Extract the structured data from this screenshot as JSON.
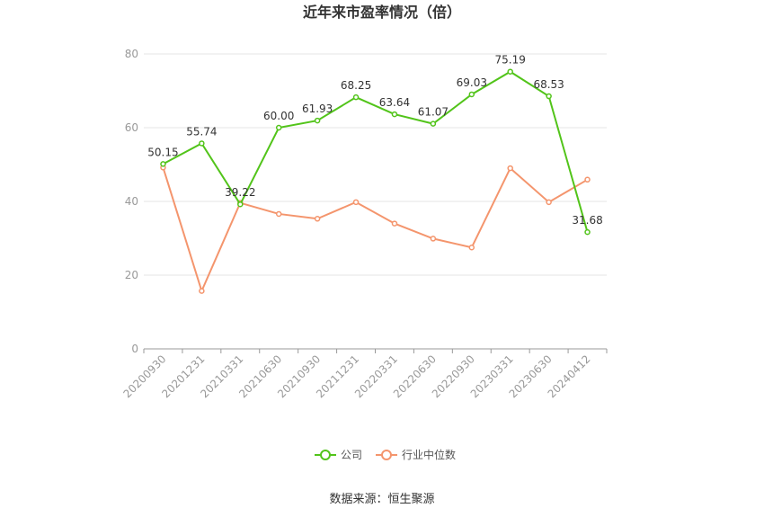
{
  "chart_data": {
    "type": "line",
    "title": "近年来市盈率情况（倍）",
    "categories": [
      "20200930",
      "20201231",
      "20210331",
      "20210630",
      "20210930",
      "20211231",
      "20220331",
      "20220630",
      "20220930",
      "20230331",
      "20230630",
      "20240412"
    ],
    "series": [
      {
        "name": "公司",
        "color": "#52c41a",
        "values": [
          50.15,
          55.74,
          39.22,
          60.0,
          61.93,
          68.25,
          63.64,
          61.07,
          69.03,
          75.19,
          68.53,
          31.68
        ],
        "labels": [
          "50.15",
          "55.74",
          "39.22",
          "60.00",
          "61.93",
          "68.25",
          "63.64",
          "61.07",
          "69.03",
          "75.19",
          "68.53",
          "31.68"
        ]
      },
      {
        "name": "行业中位数",
        "color": "#f4956d",
        "values": [
          49.2,
          15.7,
          39.6,
          36.6,
          35.3,
          39.8,
          34.0,
          29.9,
          27.5,
          49.0,
          39.8,
          45.9
        ]
      }
    ],
    "ylim": [
      0,
      80
    ],
    "yticks": [
      "0",
      "20",
      "40",
      "60",
      "80"
    ],
    "grid": true,
    "legend": "bottom"
  },
  "footer": {
    "source": "数据来源：恒生聚源"
  }
}
